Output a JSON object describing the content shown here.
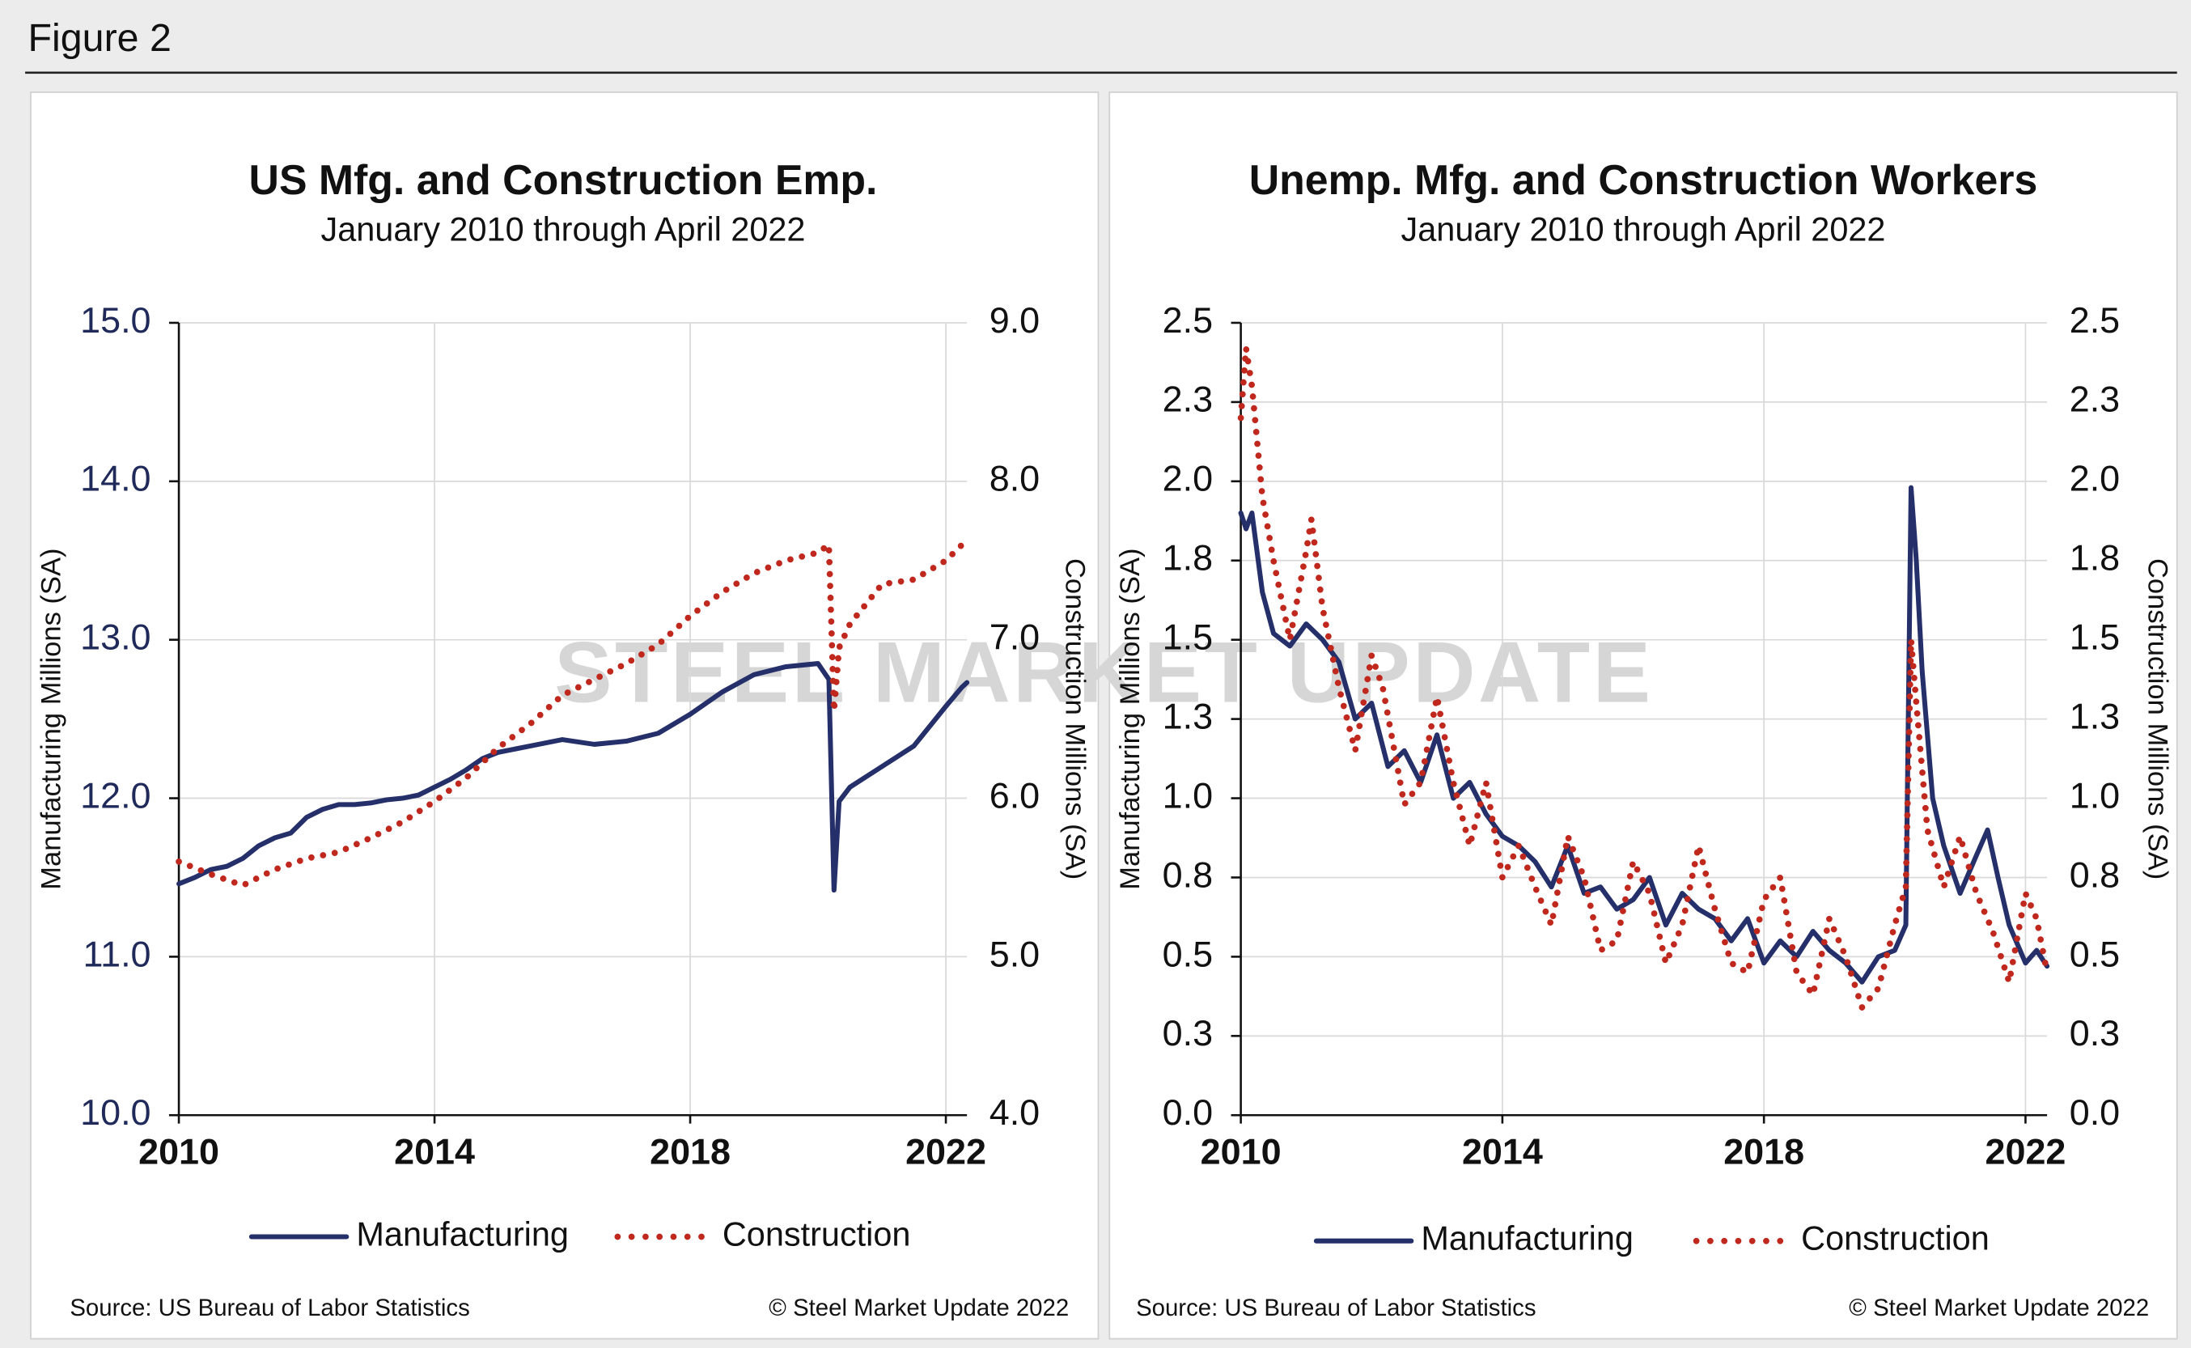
{
  "figure_title": "Figure 2",
  "watermark": "STEEL MARKET UPDATE",
  "chart_data": [
    {
      "type": "line",
      "title": "US Mfg. and Construction Emp.",
      "subtitle": "January 2010 through April 2022",
      "y_label": "Manufacturing Millions (SA)",
      "y2_label": "Construction Millions (SA)",
      "xlim": [
        2010,
        2022.33
      ],
      "xticks": [
        2010,
        2014,
        2018,
        2022
      ],
      "ylim": [
        10,
        15
      ],
      "yticks": [
        {
          "value": 10,
          "label": "10.0"
        },
        {
          "value": 11,
          "label": "11.0"
        },
        {
          "value": 12,
          "label": "12.0"
        },
        {
          "value": 13,
          "label": "13.0"
        },
        {
          "value": 14,
          "label": "14.0"
        },
        {
          "value": 15,
          "label": "15.0"
        }
      ],
      "y2lim": [
        4,
        9
      ],
      "y2ticks": [
        {
          "value": 4,
          "label": "4.0"
        },
        {
          "value": 5,
          "label": "5.0"
        },
        {
          "value": 6,
          "label": "6.0"
        },
        {
          "value": 7,
          "label": "7.0"
        },
        {
          "value": 8,
          "label": "8.0"
        },
        {
          "value": 9,
          "label": "9.0"
        }
      ],
      "grid": true,
      "series": [
        {
          "name": "Manufacturing",
          "color": "#25306b",
          "style": "solid",
          "axis": "y",
          "x": [
            2010,
            2010.25,
            2010.5,
            2010.75,
            2011,
            2011.25,
            2011.5,
            2011.75,
            2012,
            2012.25,
            2012.5,
            2012.75,
            2013,
            2013.25,
            2013.5,
            2013.75,
            2014,
            2014.25,
            2014.5,
            2014.75,
            2015,
            2015.5,
            2016,
            2016.5,
            2017,
            2017.5,
            2018,
            2018.5,
            2019,
            2019.5,
            2020,
            2020.17,
            2020.25,
            2020.33,
            2020.5,
            2021,
            2021.5,
            2022,
            2022.25,
            2022.33
          ],
          "values": [
            11.46,
            11.5,
            11.55,
            11.57,
            11.62,
            11.7,
            11.75,
            11.78,
            11.88,
            11.93,
            11.96,
            11.96,
            11.97,
            11.99,
            12.0,
            12.02,
            12.07,
            12.12,
            12.18,
            12.25,
            12.29,
            12.33,
            12.37,
            12.34,
            12.36,
            12.41,
            12.53,
            12.67,
            12.78,
            12.83,
            12.85,
            12.75,
            11.42,
            11.98,
            12.07,
            12.2,
            12.33,
            12.58,
            12.7,
            12.73
          ]
        },
        {
          "name": "Construction",
          "color": "#c0281e",
          "style": "dotted",
          "axis": "y2",
          "x": [
            2010,
            2010.5,
            2011,
            2011.5,
            2012,
            2012.5,
            2013,
            2013.5,
            2014,
            2014.5,
            2015,
            2015.5,
            2016,
            2016.5,
            2017,
            2017.5,
            2018,
            2018.5,
            2019,
            2019.5,
            2020,
            2020.17,
            2020.25,
            2020.33,
            2020.5,
            2021,
            2021.5,
            2022,
            2022.33
          ],
          "values": [
            5.6,
            5.52,
            5.45,
            5.55,
            5.62,
            5.66,
            5.75,
            5.85,
            5.98,
            6.13,
            6.32,
            6.47,
            6.65,
            6.75,
            6.85,
            6.97,
            7.15,
            7.3,
            7.42,
            7.5,
            7.55,
            7.6,
            6.55,
            6.95,
            7.1,
            7.35,
            7.38,
            7.5,
            7.63
          ]
        }
      ],
      "source": "Source: US Bureau  of Labor Statistics",
      "copyright": "© Steel Market Update 2022"
    },
    {
      "type": "line",
      "title": "Unemp. Mfg. and Construction Workers",
      "subtitle": "January 2010 through April 2022",
      "y_label": "Manufacturing Millions (SA)",
      "y2_label": "Construction Millions (SA)",
      "xlim": [
        2010,
        2022.33
      ],
      "xticks": [
        2010,
        2014,
        2018,
        2022
      ],
      "ylim": [
        0,
        2.5
      ],
      "yticks": [
        {
          "value": 0,
          "label": "0.0"
        },
        {
          "value": 0.25,
          "label": "0.3"
        },
        {
          "value": 0.5,
          "label": "0.5"
        },
        {
          "value": 0.75,
          "label": "0.8"
        },
        {
          "value": 1,
          "label": "1.0"
        },
        {
          "value": 1.25,
          "label": "1.3"
        },
        {
          "value": 1.5,
          "label": "1.5"
        },
        {
          "value": 1.75,
          "label": "1.8"
        },
        {
          "value": 2,
          "label": "2.0"
        },
        {
          "value": 2.25,
          "label": "2.3"
        },
        {
          "value": 2.5,
          "label": "2.5"
        }
      ],
      "y2lim": [
        0,
        2.5
      ],
      "y2ticks": [
        {
          "value": 0,
          "label": "0.0"
        },
        {
          "value": 0.25,
          "label": "0.3"
        },
        {
          "value": 0.5,
          "label": "0.5"
        },
        {
          "value": 0.75,
          "label": "0.8"
        },
        {
          "value": 1,
          "label": "1.0"
        },
        {
          "value": 1.25,
          "label": "1.3"
        },
        {
          "value": 1.5,
          "label": "1.5"
        },
        {
          "value": 1.75,
          "label": "1.8"
        },
        {
          "value": 2,
          "label": "2.0"
        },
        {
          "value": 2.25,
          "label": "2.3"
        },
        {
          "value": 2.5,
          "label": "2.5"
        }
      ],
      "grid": true,
      "series": [
        {
          "name": "Manufacturing",
          "color": "#25306b",
          "style": "solid",
          "axis": "y",
          "x": [
            2010,
            2010.08,
            2010.17,
            2010.33,
            2010.5,
            2010.75,
            2011,
            2011.25,
            2011.5,
            2011.75,
            2012,
            2012.25,
            2012.5,
            2012.75,
            2013,
            2013.25,
            2013.5,
            2013.75,
            2014,
            2014.25,
            2014.5,
            2014.75,
            2015,
            2015.25,
            2015.5,
            2015.75,
            2016,
            2016.25,
            2016.5,
            2016.75,
            2017,
            2017.25,
            2017.5,
            2017.75,
            2018,
            2018.25,
            2018.5,
            2018.75,
            2019,
            2019.25,
            2019.5,
            2019.75,
            2020,
            2020.17,
            2020.25,
            2020.33,
            2020.42,
            2020.58,
            2020.75,
            2021,
            2021.25,
            2021.42,
            2021.58,
            2021.75,
            2022,
            2022.17,
            2022.33
          ],
          "values": [
            1.9,
            1.85,
            1.9,
            1.65,
            1.52,
            1.48,
            1.55,
            1.5,
            1.43,
            1.25,
            1.3,
            1.1,
            1.15,
            1.05,
            1.2,
            1.0,
            1.05,
            0.95,
            0.88,
            0.85,
            0.8,
            0.72,
            0.85,
            0.7,
            0.72,
            0.65,
            0.68,
            0.75,
            0.6,
            0.7,
            0.65,
            0.62,
            0.55,
            0.62,
            0.48,
            0.55,
            0.5,
            0.58,
            0.52,
            0.48,
            0.42,
            0.5,
            0.52,
            0.6,
            1.98,
            1.75,
            1.4,
            1.0,
            0.85,
            0.7,
            0.82,
            0.9,
            0.75,
            0.6,
            0.48,
            0.52,
            0.47
          ]
        },
        {
          "name": "Construction",
          "color": "#c0281e",
          "style": "dotted",
          "axis": "y2",
          "x": [
            2010,
            2010.08,
            2010.17,
            2010.33,
            2010.5,
            2010.75,
            2011,
            2011.08,
            2011.25,
            2011.5,
            2011.75,
            2012,
            2012.17,
            2012.5,
            2012.75,
            2013,
            2013.25,
            2013.5,
            2013.75,
            2014,
            2014.25,
            2014.5,
            2014.75,
            2015,
            2015.25,
            2015.5,
            2015.75,
            2016,
            2016.25,
            2016.5,
            2016.75,
            2017,
            2017.25,
            2017.5,
            2017.75,
            2018,
            2018.25,
            2018.5,
            2018.75,
            2019,
            2019.25,
            2019.5,
            2019.75,
            2020,
            2020.17,
            2020.25,
            2020.33,
            2020.5,
            2020.75,
            2021,
            2021.25,
            2021.5,
            2021.75,
            2022,
            2022.17,
            2022.33
          ],
          "values": [
            2.2,
            2.42,
            2.3,
            1.95,
            1.75,
            1.5,
            1.78,
            1.88,
            1.6,
            1.35,
            1.15,
            1.45,
            1.35,
            0.98,
            1.05,
            1.32,
            1.05,
            0.85,
            1.05,
            0.75,
            0.85,
            0.72,
            0.6,
            0.88,
            0.75,
            0.52,
            0.55,
            0.8,
            0.7,
            0.48,
            0.6,
            0.85,
            0.65,
            0.48,
            0.45,
            0.68,
            0.75,
            0.45,
            0.38,
            0.62,
            0.5,
            0.34,
            0.4,
            0.6,
            0.72,
            1.5,
            1.3,
            0.9,
            0.72,
            0.88,
            0.7,
            0.58,
            0.42,
            0.7,
            0.62,
            0.45
          ]
        }
      ],
      "source": "Source: US Bureau  of Labor Statistics",
      "copyright": "© Steel Market Update 2022"
    }
  ]
}
